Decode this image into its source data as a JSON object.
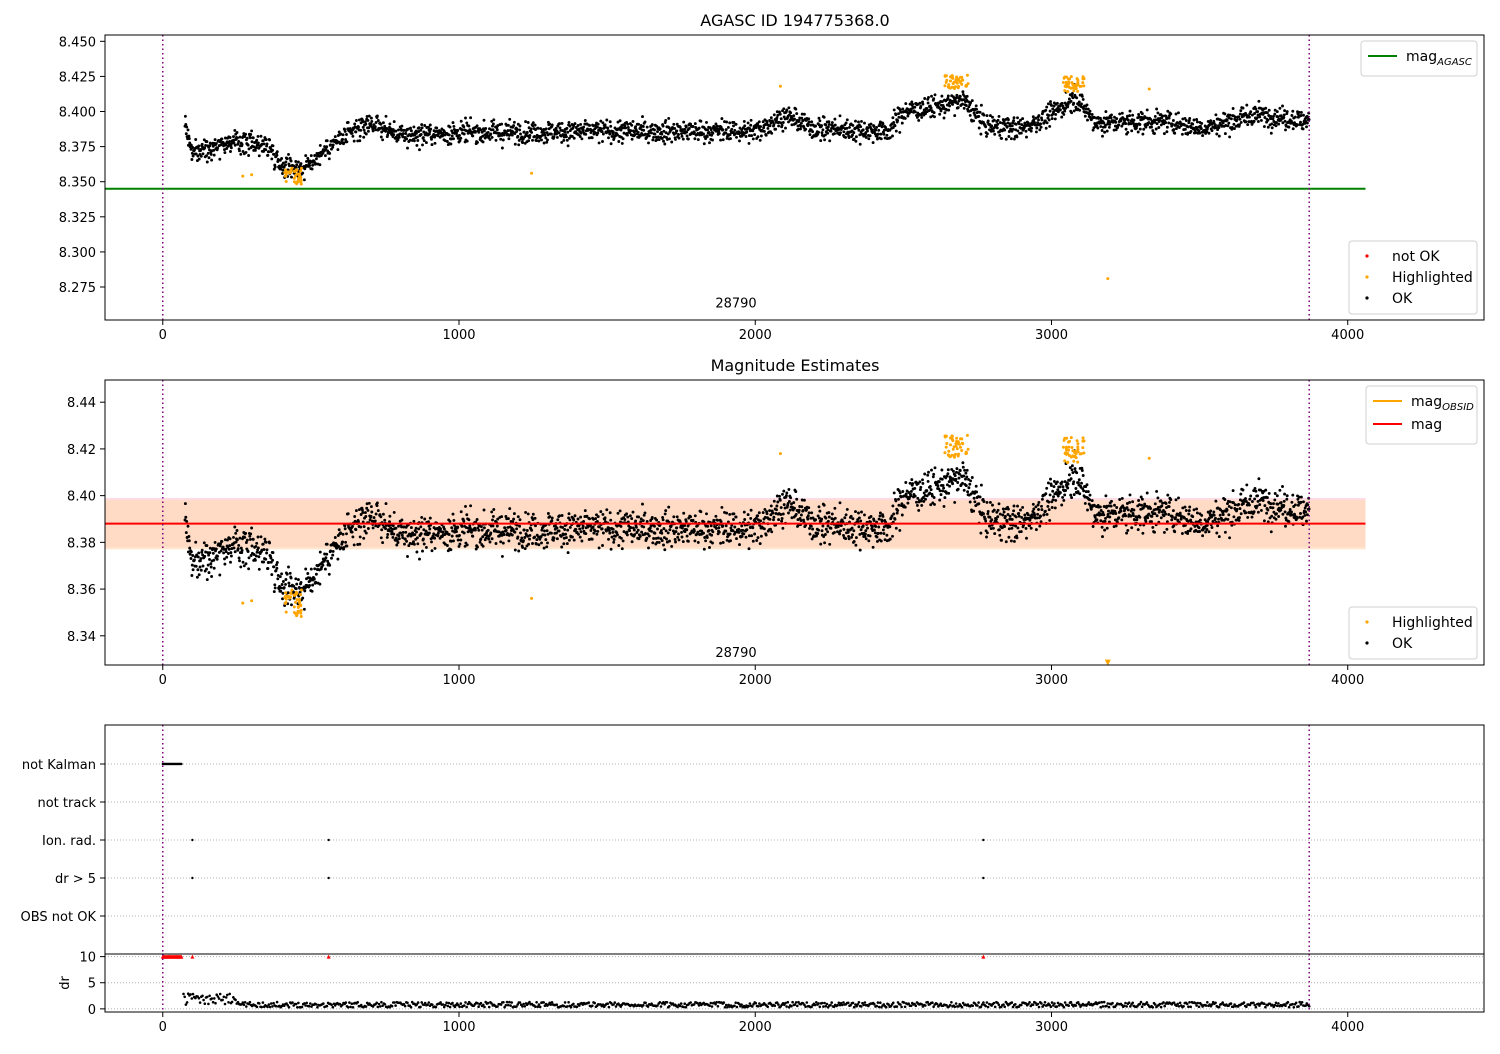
{
  "chart_data": [
    {
      "type": "scatter",
      "title": "AGASC ID 194775368.0",
      "xlim": [
        -195,
        4460
      ],
      "ylim": [
        8.2515,
        8.4545
      ],
      "xticks": [
        0,
        1000,
        2000,
        3000,
        4000
      ],
      "yticks": [
        "8.275",
        "8.300",
        "8.325",
        "8.350",
        "8.375",
        "8.400",
        "8.425",
        "8.450"
      ],
      "annotation": {
        "text": "28790",
        "x": 1935,
        "y": 8.2605
      },
      "vlines": [
        0,
        3870
      ],
      "hlines": [
        {
          "name": "mag_AGASC",
          "y": 8.345,
          "x": [
            -195,
            4060
          ],
          "color": "#008000"
        }
      ],
      "line_legend": {
        "items": [
          {
            "main": "mag",
            "sub": "AGASC",
            "color": "#008000"
          }
        ]
      },
      "scatter_legend": {
        "items": [
          {
            "label": "not OK",
            "color": "#ff0000"
          },
          {
            "label": "Highlighted",
            "color": "#ffa500"
          },
          {
            "label": "OK",
            "color": "#000000"
          }
        ]
      },
      "highlighted": {
        "clusters": [
          {
            "x": [
              410,
              470
            ],
            "y": [
              8.348,
              8.36
            ]
          },
          {
            "x": [
              2640,
              2730
            ],
            "y": [
              8.416,
              8.426
            ]
          },
          {
            "x": [
              3040,
              3110
            ],
            "y": [
              8.414,
              8.425
            ]
          }
        ],
        "points": [
          [
            270,
            8.354
          ],
          [
            300,
            8.355
          ],
          [
            1245,
            8.356
          ],
          [
            2085,
            8.418
          ],
          [
            3190,
            8.281
          ],
          [
            3330,
            8.416
          ]
        ]
      },
      "trend": [
        [
          75,
          8.392
        ],
        [
          100,
          8.37
        ],
        [
          200,
          8.378
        ],
        [
          300,
          8.378
        ],
        [
          360,
          8.375
        ],
        [
          400,
          8.362
        ],
        [
          480,
          8.36
        ],
        [
          560,
          8.375
        ],
        [
          700,
          8.392
        ],
        [
          800,
          8.383
        ],
        [
          1000,
          8.385
        ],
        [
          1500,
          8.386
        ],
        [
          2000,
          8.386
        ],
        [
          2100,
          8.397
        ],
        [
          2200,
          8.388
        ],
        [
          2450,
          8.386
        ],
        [
          2500,
          8.4
        ],
        [
          2650,
          8.405
        ],
        [
          2700,
          8.408
        ],
        [
          2780,
          8.39
        ],
        [
          2900,
          8.388
        ],
        [
          3000,
          8.398
        ],
        [
          3080,
          8.41
        ],
        [
          3150,
          8.392
        ],
        [
          3400,
          8.393
        ],
        [
          3500,
          8.388
        ],
        [
          3700,
          8.398
        ],
        [
          3870,
          8.393
        ]
      ]
    },
    {
      "type": "scatter",
      "title": "Magnitude Estimates",
      "xlim": [
        -195,
        4460
      ],
      "ylim": [
        8.3275,
        8.4495
      ],
      "xticks": [
        0,
        1000,
        2000,
        3000,
        4000
      ],
      "yticks": [
        "8.34",
        "8.36",
        "8.38",
        "8.40",
        "8.42",
        "8.44"
      ],
      "annotation": {
        "text": "28790",
        "x": 1935,
        "y": 8.331
      },
      "vlines": [
        0,
        3870
      ],
      "band": {
        "y": [
          8.378,
          8.399
        ],
        "x": [
          -195,
          4060
        ],
        "color": "#ffc0cb"
      },
      "band_orange": {
        "y": [
          8.377,
          8.398
        ],
        "x": [
          -195,
          4060
        ],
        "color": "#ffdab9"
      },
      "hlines": [
        {
          "name": "mag",
          "y": 8.388,
          "x": [
            -195,
            4060
          ],
          "color": "#ff0000"
        }
      ],
      "line_legend": {
        "items": [
          {
            "main": "mag",
            "sub": "OBSID",
            "color": "#ffa500"
          },
          {
            "main": "mag",
            "sub": "",
            "color": "#ff0000"
          }
        ]
      },
      "scatter_legend": {
        "items": [
          {
            "label": "Highlighted",
            "color": "#ffa500"
          },
          {
            "label": "OK",
            "color": "#000000"
          }
        ]
      },
      "highlighted": {
        "clusters": [
          {
            "x": [
              410,
              470
            ],
            "y": [
              8.348,
              8.36
            ]
          },
          {
            "x": [
              2640,
              2730
            ],
            "y": [
              8.416,
              8.426
            ]
          },
          {
            "x": [
              3040,
              3110
            ],
            "y": [
              8.414,
              8.425
            ]
          }
        ],
        "points": [
          [
            270,
            8.354
          ],
          [
            300,
            8.355
          ],
          [
            1245,
            8.356
          ],
          [
            2085,
            8.418
          ],
          [
            3330,
            8.416
          ]
        ],
        "offscale": [
          [
            3190,
            8.3285
          ]
        ]
      },
      "trend": [
        [
          75,
          8.392
        ],
        [
          100,
          8.37
        ],
        [
          200,
          8.378
        ],
        [
          300,
          8.378
        ],
        [
          360,
          8.375
        ],
        [
          400,
          8.362
        ],
        [
          480,
          8.36
        ],
        [
          560,
          8.375
        ],
        [
          700,
          8.392
        ],
        [
          800,
          8.383
        ],
        [
          1000,
          8.385
        ],
        [
          1500,
          8.386
        ],
        [
          2000,
          8.386
        ],
        [
          2100,
          8.397
        ],
        [
          2200,
          8.388
        ],
        [
          2450,
          8.386
        ],
        [
          2500,
          8.4
        ],
        [
          2650,
          8.405
        ],
        [
          2700,
          8.408
        ],
        [
          2780,
          8.39
        ],
        [
          2900,
          8.388
        ],
        [
          3000,
          8.398
        ],
        [
          3080,
          8.41
        ],
        [
          3150,
          8.392
        ],
        [
          3400,
          8.393
        ],
        [
          3500,
          8.388
        ],
        [
          3700,
          8.398
        ],
        [
          3870,
          8.393
        ]
      ]
    },
    {
      "type": "scatter",
      "title": "",
      "xlim": [
        -195,
        4460
      ],
      "xticks": [
        0,
        1000,
        2000,
        3000,
        4000
      ],
      "categories": [
        "not Kalman",
        "not track",
        "Ion. rad.",
        "dr > 5",
        "OBS not OK"
      ],
      "flags": {
        "not Kalman": {
          "x_range": [
            0,
            65
          ]
        },
        "not track": {
          "x": []
        },
        "Ion. rad.": {
          "x": [
            100,
            560,
            2770
          ]
        },
        "dr > 5": {
          "x": [
            100,
            560,
            2770
          ]
        },
        "OBS not OK": {
          "x": []
        }
      },
      "vlines": [
        0,
        3870
      ]
    },
    {
      "type": "scatter",
      "title": "",
      "ylabel": "dr",
      "xlim": [
        -195,
        4460
      ],
      "ylim": [
        -0.6,
        10.5
      ],
      "xticks": [
        0,
        1000,
        2000,
        3000,
        4000
      ],
      "yticks": [
        "0",
        "5",
        "10"
      ],
      "capped": {
        "y": 10,
        "x_range": [
          0,
          65
        ],
        "points": [
          100,
          560,
          2770
        ],
        "color": "#ff0000"
      },
      "dr_values": {
        "typical": [
          0.3,
          1.3
        ],
        "early": {
          "x": [
            70,
            250
          ],
          "y": [
            0.8,
            2.9
          ]
        }
      },
      "vlines": [
        0,
        3870
      ]
    }
  ]
}
